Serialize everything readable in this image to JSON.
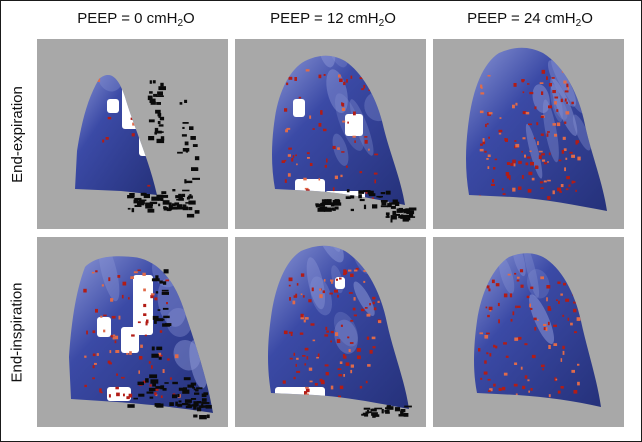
{
  "columns": [
    {
      "label_main": "PEEP = 0 cmH",
      "label_sub": "2",
      "label_tail": "O"
    },
    {
      "label_main": "PEEP = 12 cmH",
      "label_sub": "2",
      "label_tail": "O"
    },
    {
      "label_main": "PEEP = 24 cmH",
      "label_sub": "2",
      "label_tail": "O"
    }
  ],
  "rows": [
    {
      "label": "End-expiration"
    },
    {
      "label": "End-inspiration"
    }
  ],
  "colors": {
    "panel_background": "#a8a8a8",
    "lung_blue": "#3b4aa6",
    "lung_highlight": "#8c97d6",
    "hotspot_red": "#b21c16",
    "collapsed_black": "#0a0a0a",
    "void_white": "#ffffff"
  }
}
